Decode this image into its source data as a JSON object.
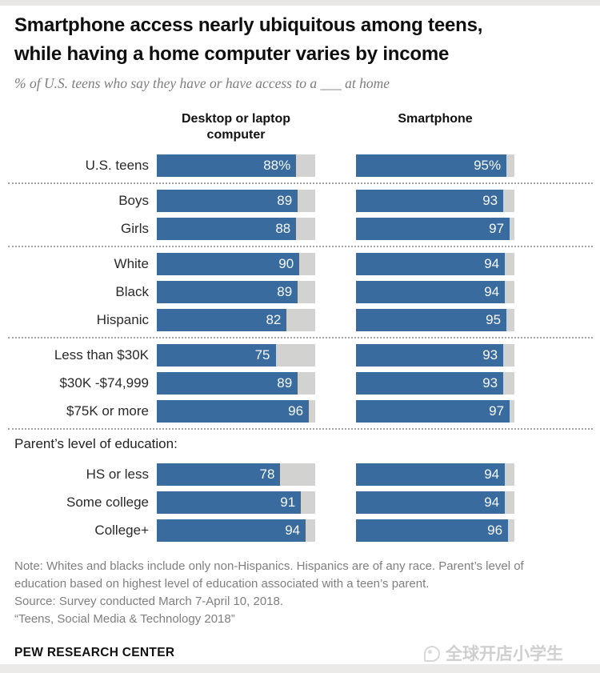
{
  "page": {
    "title_line1": "Smartphone access nearly ubiquitous among teens,",
    "title_line2": "while having a home computer varies by income",
    "subtitle": "% of U.S. teens who say they have or have access to a ___ at home",
    "note": "Note: Whites and blacks include only non-Hispanics. Hispanics are of any race. Parent’s level of education based on highest level of education associated with a teen’s parent.",
    "source": "Source: Survey conducted March 7-April 10, 2018.",
    "report": "“Teens, Social Media & Technology 2018”",
    "brand": "PEW RESEARCH CENTER",
    "watermark": "全球开店小学生"
  },
  "chart_data": {
    "type": "bar",
    "orientation": "horizontal",
    "title": "Smartphone access nearly ubiquitous among teens, while having a home computer varies by income",
    "subtitle": "% of U.S. teens who say they have or have access to a ___ at home",
    "columns": [
      "Desktop or laptop computer",
      "Smartphone"
    ],
    "xlim": [
      0,
      100
    ],
    "value_unit": "%",
    "colors": {
      "bar": "#3A6B9E",
      "track": "#D2D2D0"
    },
    "groups": [
      {
        "heading": null,
        "rows": [
          {
            "label": "U.S. teens",
            "values": [
              88,
              95
            ],
            "suffix": "%"
          }
        ]
      },
      {
        "heading": null,
        "rows": [
          {
            "label": "Boys",
            "values": [
              89,
              93
            ],
            "suffix": ""
          },
          {
            "label": "Girls",
            "values": [
              88,
              97
            ],
            "suffix": ""
          }
        ]
      },
      {
        "heading": null,
        "rows": [
          {
            "label": "White",
            "values": [
              90,
              94
            ],
            "suffix": ""
          },
          {
            "label": "Black",
            "values": [
              89,
              94
            ],
            "suffix": ""
          },
          {
            "label": "Hispanic",
            "values": [
              82,
              95
            ],
            "suffix": ""
          }
        ]
      },
      {
        "heading": null,
        "rows": [
          {
            "label": "Less than $30K",
            "values": [
              75,
              93
            ],
            "suffix": ""
          },
          {
            "label": "$30K -$74,999",
            "values": [
              89,
              93
            ],
            "suffix": ""
          },
          {
            "label": "$75K or more",
            "values": [
              96,
              97
            ],
            "suffix": ""
          }
        ]
      },
      {
        "heading": "Parent’s level of education:",
        "rows": [
          {
            "label": "HS or less",
            "values": [
              78,
              94
            ],
            "suffix": ""
          },
          {
            "label": "Some college",
            "values": [
              91,
              94
            ],
            "suffix": ""
          },
          {
            "label": "College+",
            "values": [
              94,
              96
            ],
            "suffix": ""
          }
        ]
      }
    ]
  }
}
